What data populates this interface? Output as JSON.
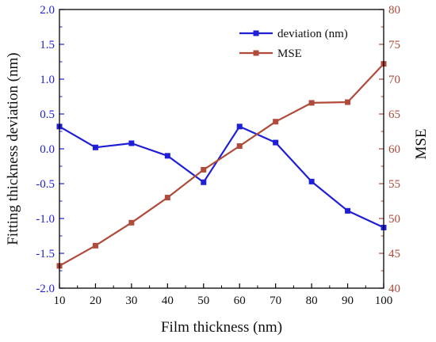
{
  "chart_data": {
    "type": "line",
    "x": [
      10,
      20,
      30,
      40,
      50,
      60,
      70,
      80,
      90,
      100
    ],
    "xlabel": "Film thickness (nm)",
    "xlim": [
      10,
      100
    ],
    "xticks": [
      10,
      20,
      30,
      40,
      50,
      60,
      70,
      80,
      90,
      100
    ],
    "y_left_label": "Fitting thickness deviation (nm)",
    "y_left_lim": [
      -2.0,
      2.0
    ],
    "y_left_ticks": [
      "-2.0",
      "-1.5",
      "-1.0",
      "-0.5",
      "0.0",
      "0.5",
      "1.0",
      "1.5",
      "2.0"
    ],
    "y_right_label": "MSE",
    "y_right_lim": [
      40,
      80
    ],
    "y_right_ticks": [
      "40",
      "45",
      "50",
      "55",
      "60",
      "65",
      "70",
      "75",
      "80"
    ],
    "grid": false,
    "legend_position": "top-right",
    "series": [
      {
        "name": "deviation (nm)",
        "axis": "left",
        "color": "#1f1fd6",
        "marker": "square",
        "values": [
          0.32,
          0.02,
          0.08,
          -0.1,
          -0.48,
          0.32,
          0.09,
          -0.47,
          -0.89,
          -1.13
        ]
      },
      {
        "name": "MSE",
        "axis": "right",
        "color": "#b04a3a",
        "marker": "square",
        "values": [
          43.2,
          46.1,
          49.4,
          53.0,
          57.0,
          60.4,
          63.9,
          66.6,
          66.7,
          72.2
        ]
      }
    ]
  }
}
